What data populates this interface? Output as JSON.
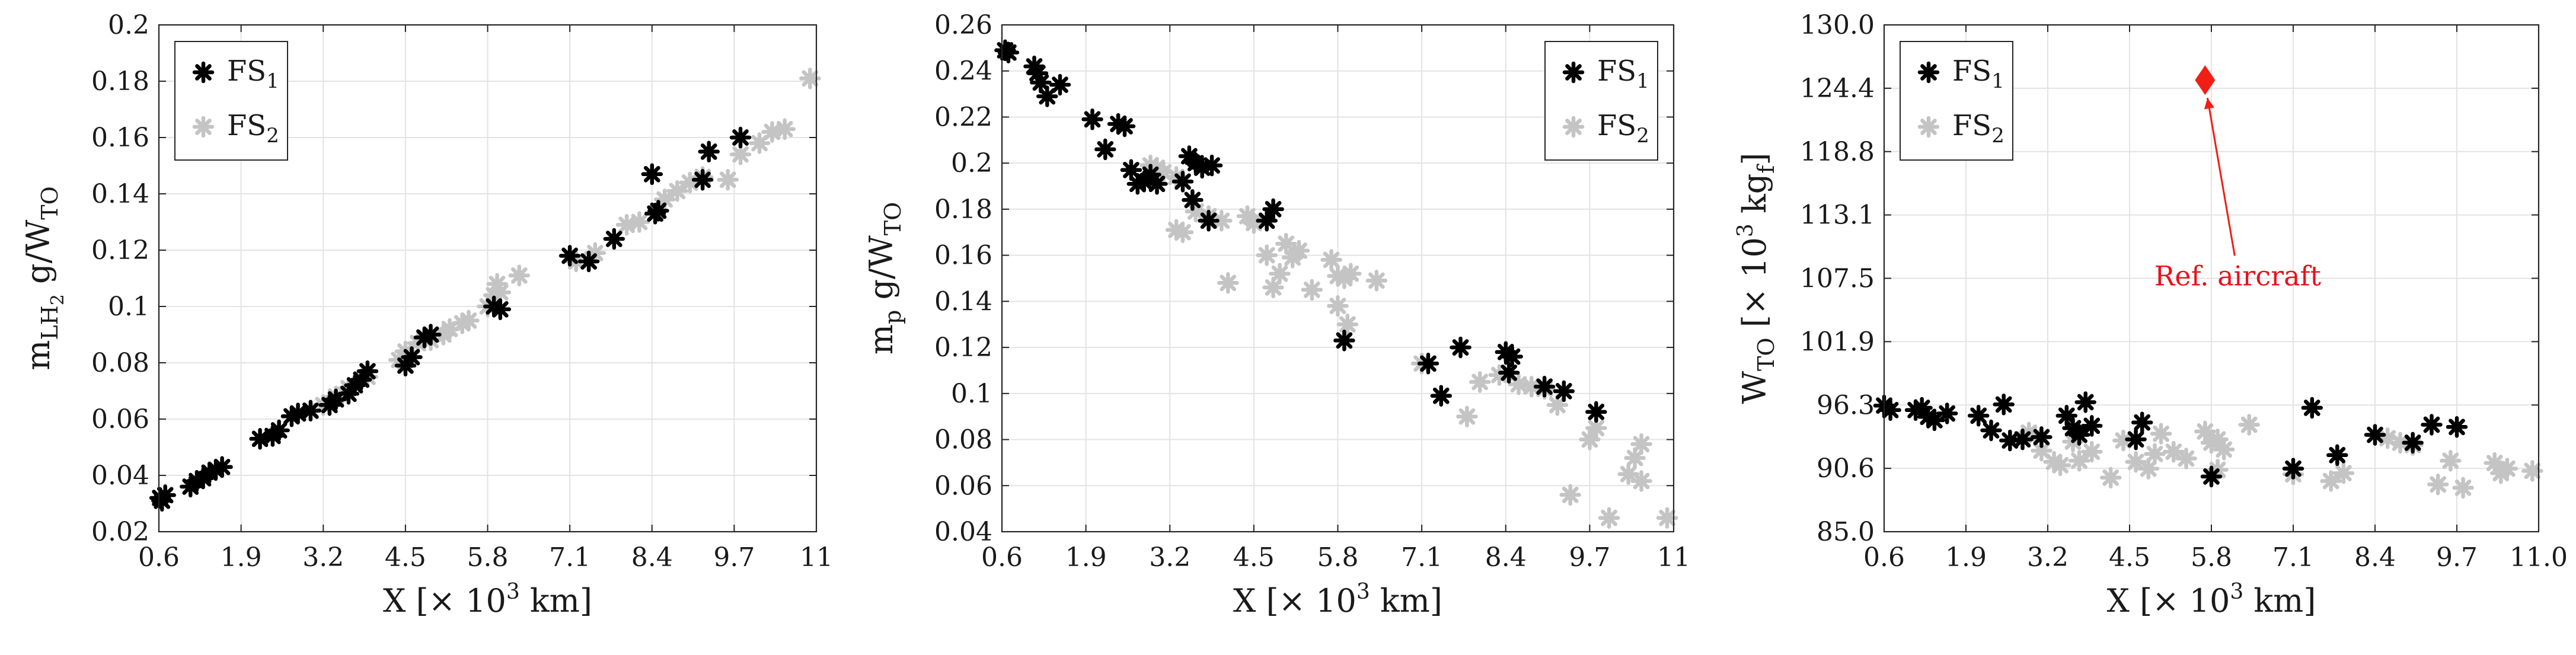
{
  "colors": {
    "FS1": "#000000",
    "FS2": "#c4c4c4",
    "reference": "#f01e14",
    "grid": "#e3e3e3",
    "axis": "#262626"
  },
  "marker_icon": "asterisk-icon",
  "reference_icon": "diamond-icon",
  "chart_data": [
    {
      "type": "scatter",
      "title": "",
      "xlabel": {
        "main": "X [× 10",
        "sup": "3",
        "tail": " km]"
      },
      "ylabel": {
        "main": "m",
        "sub": "LH",
        "subsub": "2",
        "mid": " g/W",
        "sub2": "TO"
      },
      "xlim": [
        0.6,
        11
      ],
      "ylim": [
        0.02,
        0.2
      ],
      "xticks": [
        "0.6",
        "1.9",
        "3.2",
        "4.5",
        "5.8",
        "7.1",
        "8.4",
        "9.7",
        "11"
      ],
      "yticks": [
        "0.02",
        "0.04",
        "0.06",
        "0.08",
        "0.1",
        "0.12",
        "0.14",
        "0.16",
        "0.18",
        "0.2"
      ],
      "grid": true,
      "legend": "top-left",
      "series": [
        {
          "name": "FS1",
          "sub": "1",
          "label": "FS",
          "points": [
            [
              0.62,
              0.032
            ],
            [
              0.65,
              0.031
            ],
            [
              0.7,
              0.033
            ],
            [
              1.1,
              0.036
            ],
            [
              1.2,
              0.038
            ],
            [
              1.3,
              0.039
            ],
            [
              1.4,
              0.041
            ],
            [
              1.5,
              0.042
            ],
            [
              1.6,
              0.043
            ],
            [
              2.2,
              0.053
            ],
            [
              2.4,
              0.054
            ],
            [
              2.5,
              0.056
            ],
            [
              2.7,
              0.061
            ],
            [
              2.8,
              0.062
            ],
            [
              3.0,
              0.063
            ],
            [
              3.3,
              0.065
            ],
            [
              3.4,
              0.067
            ],
            [
              3.6,
              0.069
            ],
            [
              3.7,
              0.072
            ],
            [
              3.8,
              0.074
            ],
            [
              3.9,
              0.077
            ],
            [
              4.5,
              0.079
            ],
            [
              4.6,
              0.082
            ],
            [
              4.8,
              0.089
            ],
            [
              4.9,
              0.09
            ],
            [
              5.9,
              0.1
            ],
            [
              6.0,
              0.099
            ],
            [
              7.1,
              0.118
            ],
            [
              7.4,
              0.116
            ],
            [
              7.8,
              0.124
            ],
            [
              8.4,
              0.147
            ],
            [
              8.45,
              0.133
            ],
            [
              8.5,
              0.134
            ],
            [
              9.2,
              0.145
            ],
            [
              9.3,
              0.155
            ],
            [
              9.8,
              0.16
            ]
          ]
        },
        {
          "name": "FS2",
          "sub": "2",
          "label": "FS",
          "points": [
            [
              3.2,
              0.065
            ],
            [
              3.4,
              0.068
            ],
            [
              3.6,
              0.071
            ],
            [
              3.9,
              0.075
            ],
            [
              4.4,
              0.081
            ],
            [
              4.5,
              0.084
            ],
            [
              4.7,
              0.087
            ],
            [
              4.9,
              0.088
            ],
            [
              5.1,
              0.09
            ],
            [
              5.2,
              0.092
            ],
            [
              5.4,
              0.094
            ],
            [
              5.5,
              0.095
            ],
            [
              5.8,
              0.1
            ],
            [
              5.9,
              0.104
            ],
            [
              5.95,
              0.108
            ],
            [
              6.0,
              0.105
            ],
            [
              6.3,
              0.111
            ],
            [
              7.2,
              0.116
            ],
            [
              7.5,
              0.119
            ],
            [
              8.0,
              0.129
            ],
            [
              8.2,
              0.13
            ],
            [
              8.6,
              0.138
            ],
            [
              8.8,
              0.141
            ],
            [
              9.0,
              0.144
            ],
            [
              9.2,
              0.146
            ],
            [
              9.6,
              0.145
            ],
            [
              9.8,
              0.154
            ],
            [
              10.1,
              0.158
            ],
            [
              10.3,
              0.162
            ],
            [
              10.5,
              0.163
            ],
            [
              10.9,
              0.181
            ]
          ]
        }
      ]
    },
    {
      "type": "scatter",
      "title": "",
      "xlabel": {
        "main": "X [× 10",
        "sup": "3",
        "tail": " km]"
      },
      "ylabel": {
        "main": "m",
        "sub": "p",
        "mid": " g/W",
        "sub2": "TO"
      },
      "xlim": [
        0.6,
        11
      ],
      "ylim": [
        0.04,
        0.26
      ],
      "xticks": [
        "0.6",
        "1.9",
        "3.2",
        "4.5",
        "5.8",
        "7.1",
        "8.4",
        "9.7",
        "11"
      ],
      "yticks": [
        "0.04",
        "0.06",
        "0.08",
        "0.1",
        "0.12",
        "0.14",
        "0.16",
        "0.18",
        "0.2",
        "0.22",
        "0.24",
        "0.26"
      ],
      "grid": true,
      "legend": "top-right",
      "series": [
        {
          "name": "FS1",
          "sub": "1",
          "label": "FS",
          "points": [
            [
              0.65,
              0.249
            ],
            [
              0.7,
              0.248
            ],
            [
              1.1,
              0.242
            ],
            [
              1.15,
              0.239
            ],
            [
              1.2,
              0.235
            ],
            [
              1.3,
              0.229
            ],
            [
              1.5,
              0.234
            ],
            [
              2.0,
              0.219
            ],
            [
              2.2,
              0.206
            ],
            [
              2.4,
              0.217
            ],
            [
              2.5,
              0.216
            ],
            [
              2.6,
              0.197
            ],
            [
              2.7,
              0.191
            ],
            [
              2.8,
              0.192
            ],
            [
              2.9,
              0.195
            ],
            [
              3.0,
              0.191
            ],
            [
              3.4,
              0.192
            ],
            [
              3.5,
              0.203
            ],
            [
              3.55,
              0.184
            ],
            [
              3.6,
              0.2
            ],
            [
              3.7,
              0.198
            ],
            [
              3.8,
              0.175
            ],
            [
              3.85,
              0.199
            ],
            [
              4.7,
              0.175
            ],
            [
              4.8,
              0.18
            ],
            [
              5.9,
              0.123
            ],
            [
              7.2,
              0.113
            ],
            [
              7.4,
              0.099
            ],
            [
              7.7,
              0.12
            ],
            [
              8.4,
              0.118
            ],
            [
              8.45,
              0.109
            ],
            [
              8.5,
              0.116
            ],
            [
              9.0,
              0.103
            ],
            [
              9.3,
              0.101
            ],
            [
              9.8,
              0.092
            ]
          ]
        },
        {
          "name": "FS2",
          "sub": "2",
          "label": "FS",
          "points": [
            [
              2.9,
              0.199
            ],
            [
              3.0,
              0.198
            ],
            [
              3.1,
              0.196
            ],
            [
              3.3,
              0.194
            ],
            [
              3.3,
              0.171
            ],
            [
              3.4,
              0.17
            ],
            [
              3.6,
              0.179
            ],
            [
              3.8,
              0.177
            ],
            [
              4.0,
              0.175
            ],
            [
              4.1,
              0.148
            ],
            [
              4.4,
              0.177
            ],
            [
              4.5,
              0.174
            ],
            [
              4.7,
              0.16
            ],
            [
              4.8,
              0.146
            ],
            [
              4.9,
              0.152
            ],
            [
              5.0,
              0.165
            ],
            [
              5.1,
              0.159
            ],
            [
              5.2,
              0.162
            ],
            [
              5.4,
              0.145
            ],
            [
              5.7,
              0.158
            ],
            [
              5.8,
              0.151
            ],
            [
              5.9,
              0.15
            ],
            [
              6.0,
              0.152
            ],
            [
              5.8,
              0.138
            ],
            [
              5.95,
              0.13
            ],
            [
              6.4,
              0.149
            ],
            [
              7.1,
              0.113
            ],
            [
              7.8,
              0.09
            ],
            [
              8.0,
              0.105
            ],
            [
              8.3,
              0.108
            ],
            [
              8.6,
              0.104
            ],
            [
              8.8,
              0.103
            ],
            [
              9.0,
              0.102
            ],
            [
              9.2,
              0.095
            ],
            [
              9.4,
              0.056
            ],
            [
              9.7,
              0.08
            ],
            [
              9.8,
              0.085
            ],
            [
              10.0,
              0.046
            ],
            [
              10.3,
              0.065
            ],
            [
              10.4,
              0.072
            ],
            [
              10.5,
              0.078
            ],
            [
              10.5,
              0.062
            ],
            [
              10.9,
              0.046
            ]
          ]
        }
      ]
    },
    {
      "type": "scatter",
      "title": "",
      "xlabel": {
        "main": "X [× 10",
        "sup": "3",
        "tail": " km]"
      },
      "ylabel": {
        "main": "W",
        "sub": "TO",
        "mid": " [× 10",
        "sup": "3",
        "tail": " kg",
        "sub2": "f",
        "end": "]"
      },
      "xlim": [
        0.6,
        11
      ],
      "ylim": [
        85,
        130
      ],
      "xticks": [
        "0.6",
        "1.9",
        "3.2",
        "4.5",
        "5.8",
        "7.1",
        "8.4",
        "9.7",
        "11.0"
      ],
      "yticks": [
        "85.0",
        "90.6",
        "96.3",
        "101.9",
        "107.5",
        "113.1",
        "118.8",
        "124.4",
        "130.0"
      ],
      "grid": true,
      "legend": "top-left",
      "reference": {
        "label": "Ref. aircraft",
        "x": 5.7,
        "y": 125.1
      },
      "series": [
        {
          "name": "FS1",
          "sub": "1",
          "label": "FS",
          "points": [
            [
              0.6,
              96.2
            ],
            [
              0.7,
              95.8
            ],
            [
              1.1,
              95.8
            ],
            [
              1.2,
              96.0
            ],
            [
              1.3,
              95.2
            ],
            [
              1.4,
              94.9
            ],
            [
              1.6,
              95.5
            ],
            [
              2.1,
              95.3
            ],
            [
              2.3,
              94.0
            ],
            [
              2.5,
              96.3
            ],
            [
              2.6,
              93.1
            ],
            [
              2.8,
              93.2
            ],
            [
              3.1,
              93.4
            ],
            [
              3.5,
              95.3
            ],
            [
              3.6,
              94.2
            ],
            [
              3.7,
              93.6
            ],
            [
              3.8,
              96.5
            ],
            [
              3.9,
              94.4
            ],
            [
              4.6,
              93.2
            ],
            [
              4.7,
              94.7
            ],
            [
              5.8,
              89.9
            ],
            [
              7.1,
              90.6
            ],
            [
              7.4,
              96.0
            ],
            [
              7.8,
              91.8
            ],
            [
              8.4,
              93.6
            ],
            [
              9.0,
              92.9
            ],
            [
              9.3,
              94.5
            ],
            [
              9.7,
              94.3
            ]
          ]
        },
        {
          "name": "FS2",
          "sub": "2",
          "label": "FS",
          "points": [
            [
              2.9,
              93.8
            ],
            [
              3.0,
              93.5
            ],
            [
              3.1,
              92.2
            ],
            [
              3.3,
              91.2
            ],
            [
              3.4,
              90.9
            ],
            [
              3.6,
              93.0
            ],
            [
              3.7,
              91.3
            ],
            [
              3.9,
              92.1
            ],
            [
              4.2,
              89.8
            ],
            [
              4.4,
              93.1
            ],
            [
              4.6,
              91.2
            ],
            [
              4.8,
              90.6
            ],
            [
              4.9,
              91.9
            ],
            [
              5.0,
              93.7
            ],
            [
              5.2,
              92.1
            ],
            [
              5.4,
              91.5
            ],
            [
              5.7,
              93.9
            ],
            [
              5.8,
              92.9
            ],
            [
              5.9,
              93.2
            ],
            [
              6.0,
              92.3
            ],
            [
              5.9,
              90.5
            ],
            [
              6.4,
              94.5
            ],
            [
              7.1,
              90.1
            ],
            [
              7.7,
              89.5
            ],
            [
              7.9,
              90.2
            ],
            [
              8.6,
              93.3
            ],
            [
              8.8,
              92.9
            ],
            [
              9.0,
              92.7
            ],
            [
              9.4,
              89.2
            ],
            [
              9.6,
              91.3
            ],
            [
              9.8,
              88.9
            ],
            [
              10.3,
              91.1
            ],
            [
              10.4,
              90.2
            ],
            [
              10.5,
              90.6
            ],
            [
              10.9,
              90.4
            ]
          ]
        }
      ]
    }
  ]
}
